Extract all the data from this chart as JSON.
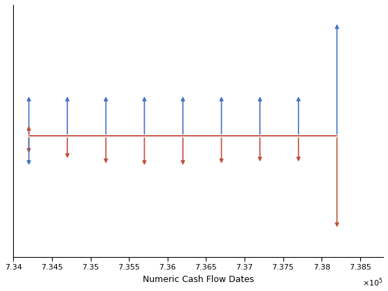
{
  "baseline_y": 0,
  "xlabel": "Numeric Cash Flow Dates",
  "xlim": [
    734000.0,
    738800.0
  ],
  "ylim": [
    -3.5,
    3.8
  ],
  "blue_color": "#4472C4",
  "orange_color": "#C0503A",
  "all_dates": [
    734200.0,
    734700.0,
    735200.0,
    735700.0,
    736200.0,
    736700.0,
    737200.0,
    737700.0
  ],
  "final_date": 738200.0,
  "blue_up_regular": 1.2,
  "orange_down_regular": [
    0.55,
    0.7,
    0.85,
    0.9,
    0.9,
    0.85,
    0.8,
    0.8
  ],
  "first_orange_up": 0.35,
  "first_blue_down": 0.9,
  "blue_up_final": 3.3,
  "orange_down_final": 2.7,
  "xticks": [
    734000.0,
    734500.0,
    735000.0,
    735500.0,
    736000.0,
    736500.0,
    737000.0,
    737500.0,
    738000.0,
    738500.0
  ],
  "xtick_labels": [
    "7.34",
    "7.345",
    "7.35",
    "7.355",
    "7.36",
    "7.365",
    "7.37",
    "7.375",
    "7.38",
    "7.385"
  ],
  "arrow_mutation_scale": 8,
  "arrow_lw": 1.2
}
